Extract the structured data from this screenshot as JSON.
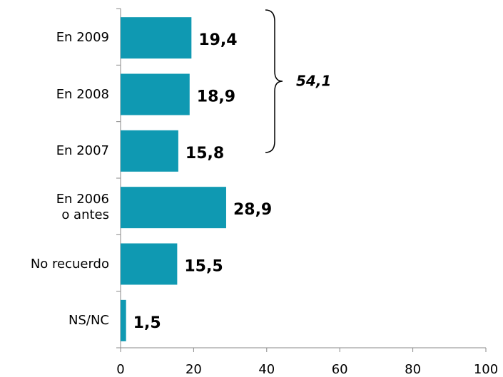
{
  "chart_data": {
    "type": "bar",
    "orientation": "horizontal",
    "categories": [
      "En 2009",
      "En 2008",
      "En 2007",
      "En 2006 o antes",
      "No recuerdo",
      "NS/NC"
    ],
    "values": [
      19.4,
      18.9,
      15.8,
      28.9,
      15.5,
      1.5
    ],
    "value_labels": [
      "19,4",
      "18,9",
      "15,8",
      "28,9",
      "15,5",
      "1,5"
    ],
    "color": "#0f99b2",
    "xlim": [
      0,
      100
    ],
    "xticks": [
      0,
      20,
      40,
      60,
      80,
      100
    ],
    "annotation": "54,1"
  }
}
